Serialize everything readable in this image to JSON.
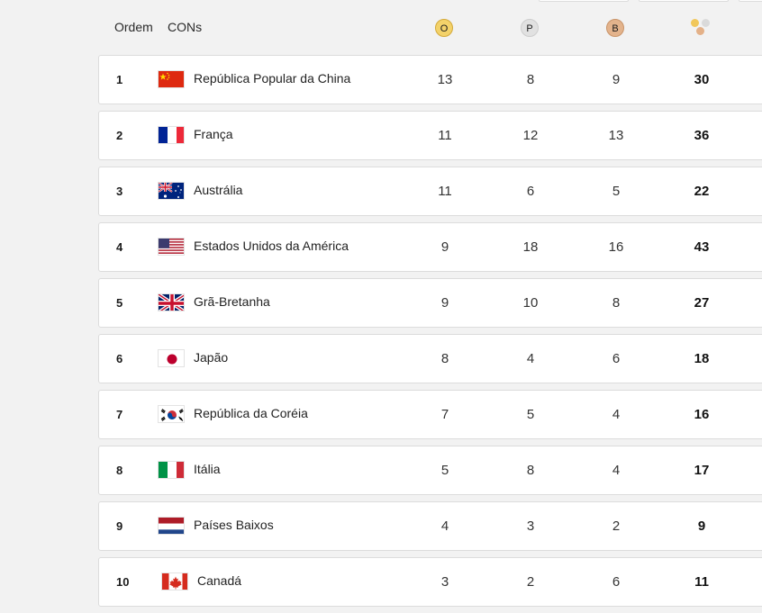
{
  "header": {
    "rank_label": "Ordem",
    "noc_label": "CONs",
    "gold_label": "O",
    "silver_label": "P",
    "bronze_label": "B",
    "total_icon": "medals-total-icon"
  },
  "colors": {
    "gold": "#f3d26a",
    "silver": "#e1e1e1",
    "bronze": "#e3b38c",
    "row_bg": "#ffffff",
    "page_bg": "#f2f2f2"
  },
  "rows": [
    {
      "rank": "1",
      "country": "República Popular da China",
      "flag": "china-flag-icon",
      "gold": "13",
      "silver": "8",
      "bronze": "9",
      "total": "30"
    },
    {
      "rank": "2",
      "country": "França",
      "flag": "france-flag-icon",
      "gold": "11",
      "silver": "12",
      "bronze": "13",
      "total": "36"
    },
    {
      "rank": "3",
      "country": "Austrália",
      "flag": "australia-flag-icon",
      "gold": "11",
      "silver": "6",
      "bronze": "5",
      "total": "22"
    },
    {
      "rank": "4",
      "country": "Estados Unidos da América",
      "flag": "usa-flag-icon",
      "gold": "9",
      "silver": "18",
      "bronze": "16",
      "total": "43"
    },
    {
      "rank": "5",
      "country": "Grã-Bretanha",
      "flag": "great-britain-flag-icon",
      "gold": "9",
      "silver": "10",
      "bronze": "8",
      "total": "27"
    },
    {
      "rank": "6",
      "country": "Japão",
      "flag": "japan-flag-icon",
      "gold": "8",
      "silver": "4",
      "bronze": "6",
      "total": "18"
    },
    {
      "rank": "7",
      "country": "República da Coréia",
      "flag": "korea-flag-icon",
      "gold": "7",
      "silver": "5",
      "bronze": "4",
      "total": "16"
    },
    {
      "rank": "8",
      "country": "Itália",
      "flag": "italy-flag-icon",
      "gold": "5",
      "silver": "8",
      "bronze": "4",
      "total": "17"
    },
    {
      "rank": "9",
      "country": "Países Baixos",
      "flag": "netherlands-flag-icon",
      "gold": "4",
      "silver": "3",
      "bronze": "2",
      "total": "9"
    },
    {
      "rank": "10",
      "country": "Canadá",
      "flag": "canada-flag-icon",
      "gold": "3",
      "silver": "2",
      "bronze": "6",
      "total": "11"
    }
  ]
}
